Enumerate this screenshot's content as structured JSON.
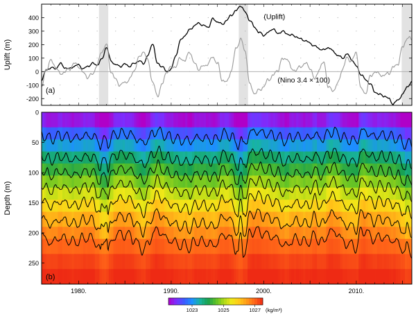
{
  "chart_data": [
    {
      "type": "line",
      "panel_label": "(a)",
      "ylabel": "Uplift  (m)",
      "ylim": [
        -250,
        500
      ],
      "yticks": [
        -200,
        -100,
        0,
        100,
        200,
        300,
        400
      ],
      "xlim": [
        1976,
        2016
      ],
      "grid": "dotted",
      "shaded_periods": [
        [
          1982.2,
          1983.2
        ],
        [
          1997.3,
          1998.3
        ],
        [
          2014.9,
          2016.0
        ]
      ],
      "zero_line": true,
      "series": [
        {
          "name": "(Uplift)",
          "color": "#000000",
          "x": [
            1976.0,
            1976.5,
            1977.0,
            1977.5,
            1978.0,
            1978.5,
            1979.0,
            1979.5,
            1980.0,
            1980.5,
            1981.0,
            1981.5,
            1982.0,
            1982.5,
            1983.0,
            1983.5,
            1984.0,
            1984.5,
            1985.0,
            1985.5,
            1986.0,
            1986.5,
            1987.0,
            1987.5,
            1988.0,
            1988.5,
            1989.0,
            1989.5,
            1990.0,
            1990.5,
            1991.0,
            1991.5,
            1992.0,
            1992.5,
            1993.0,
            1993.5,
            1994.0,
            1994.5,
            1995.0,
            1995.5,
            1996.0,
            1996.5,
            1997.0,
            1997.5,
            1998.0,
            1998.5,
            1999.0,
            1999.5,
            2000.0,
            2000.5,
            2001.0,
            2001.5,
            2002.0,
            2002.5,
            2003.0,
            2003.5,
            2004.0,
            2004.5,
            2005.0,
            2005.5,
            2006.0,
            2006.5,
            2007.0,
            2007.5,
            2008.0,
            2008.5,
            2009.0,
            2009.5,
            2010.0,
            2010.5,
            2011.0,
            2011.5,
            2012.0,
            2012.5,
            2013.0,
            2013.5,
            2014.0,
            2014.5,
            2015.0,
            2015.5,
            2016.0
          ],
          "values": [
            -60,
            10,
            30,
            20,
            60,
            30,
            20,
            40,
            50,
            20,
            40,
            60,
            50,
            90,
            180,
            80,
            50,
            40,
            55,
            40,
            60,
            80,
            60,
            120,
            210,
            60,
            40,
            0,
            20,
            120,
            230,
            270,
            310,
            340,
            360,
            340,
            330,
            390,
            370,
            350,
            380,
            420,
            450,
            490,
            440,
            380,
            330,
            290,
            270,
            290,
            320,
            280,
            300,
            280,
            270,
            260,
            240,
            230,
            210,
            190,
            170,
            160,
            180,
            150,
            120,
            100,
            130,
            90,
            40,
            -20,
            -60,
            -90,
            -150,
            -170,
            -180,
            -200,
            -240,
            -210,
            -170,
            -110,
            -80
          ]
        },
        {
          "name": "(Nino 3.4 × 100)",
          "color": "#999999",
          "x": [
            1976.0,
            1976.5,
            1977.0,
            1977.5,
            1978.0,
            1978.5,
            1979.0,
            1979.5,
            1980.0,
            1980.5,
            1981.0,
            1981.5,
            1982.0,
            1982.5,
            1983.0,
            1983.5,
            1984.0,
            1984.5,
            1985.0,
            1985.5,
            1986.0,
            1986.5,
            1987.0,
            1987.5,
            1988.0,
            1988.5,
            1989.0,
            1989.5,
            1990.0,
            1990.5,
            1991.0,
            1991.5,
            1992.0,
            1992.5,
            1993.0,
            1993.5,
            1994.0,
            1994.5,
            1995.0,
            1995.5,
            1996.0,
            1996.5,
            1997.0,
            1997.5,
            1998.0,
            1998.5,
            1999.0,
            1999.5,
            2000.0,
            2000.5,
            2001.0,
            2001.5,
            2002.0,
            2002.5,
            2003.0,
            2003.5,
            2004.0,
            2004.5,
            2005.0,
            2005.5,
            2006.0,
            2006.5,
            2007.0,
            2007.5,
            2008.0,
            2008.5,
            2009.0,
            2009.5,
            2010.0,
            2010.5,
            2011.0,
            2011.5,
            2012.0,
            2012.5,
            2013.0,
            2013.5,
            2014.0,
            2014.5,
            2015.0,
            2015.5,
            2016.0
          ],
          "values": [
            -120,
            20,
            80,
            40,
            -20,
            0,
            20,
            60,
            40,
            -10,
            -40,
            -20,
            50,
            150,
            200,
            0,
            -60,
            -100,
            -80,
            -60,
            10,
            100,
            150,
            80,
            -80,
            -180,
            -100,
            0,
            30,
            40,
            100,
            80,
            150,
            60,
            20,
            40,
            60,
            110,
            60,
            -60,
            -80,
            10,
            170,
            240,
            150,
            -100,
            -160,
            -140,
            -110,
            -60,
            -30,
            10,
            90,
            100,
            20,
            10,
            40,
            60,
            30,
            -60,
            20,
            70,
            -120,
            -140,
            -90,
            20,
            100,
            80,
            140,
            -130,
            -160,
            -40,
            0,
            -20,
            -30,
            -10,
            30,
            60,
            180,
            250,
            240
          ]
        }
      ],
      "labels": [
        {
          "text": "(Uplift)",
          "x": 2000.0,
          "y": 390
        },
        {
          "text": "(Nino 3.4 × 100)",
          "x": 2001.5,
          "y": -80
        }
      ]
    },
    {
      "type": "heatmap",
      "panel_label": "(b)",
      "ylabel": "Depth  (m)",
      "ylim": [
        285,
        0
      ],
      "yticks": [
        0,
        50,
        100,
        150,
        200,
        250
      ],
      "xlim": [
        1976,
        2016
      ],
      "xticks": [
        1980,
        1990,
        2000,
        2010
      ],
      "xtick_labels": [
        "1980.",
        "1990.",
        "2000.",
        "2010."
      ],
      "colorbar": {
        "unit": "(kg/m³)",
        "tick_values": [
          1023,
          1025,
          1027
        ],
        "tick_labels": [
          "1023",
          "1025",
          "1027"
        ],
        "range": [
          1021.5,
          1027.5
        ],
        "colors": [
          "#b000c8",
          "#7a30ff",
          "#3a5cff",
          "#1c90ff",
          "#18b4a0",
          "#18a050",
          "#5ac028",
          "#a8d818",
          "#f0e818",
          "#ffc818",
          "#ff9818",
          "#ff6418",
          "#ee2a14"
        ]
      },
      "density_bands": [
        {
          "top": 0,
          "bottom": 25,
          "density": 1021.8
        },
        {
          "top": 25,
          "bottom": 45,
          "density": 1022.6
        },
        {
          "top": 45,
          "bottom": 65,
          "density": 1023.2
        },
        {
          "top": 65,
          "bottom": 85,
          "density": 1023.8
        },
        {
          "top": 85,
          "bottom": 105,
          "density": 1024.3
        },
        {
          "top": 105,
          "bottom": 125,
          "density": 1024.8
        },
        {
          "top": 125,
          "bottom": 145,
          "density": 1025.3
        },
        {
          "top": 145,
          "bottom": 165,
          "density": 1025.8
        },
        {
          "top": 165,
          "bottom": 190,
          "density": 1026.3
        },
        {
          "top": 190,
          "bottom": 210,
          "density": 1026.7
        },
        {
          "top": 210,
          "bottom": 235,
          "density": 1027.0
        },
        {
          "top": 235,
          "bottom": 260,
          "density": 1027.3
        },
        {
          "top": 260,
          "bottom": 285,
          "density": 1027.5
        }
      ],
      "isopycnal_mean_depths": [
        40,
        75,
        100,
        125,
        150,
        180,
        210
      ],
      "anomaly_index": [
        -0.3,
        0.1,
        0.2,
        0.1,
        -0.1,
        0.0,
        0.1,
        0.2,
        0.1,
        0.0,
        -0.1,
        0.0,
        0.3,
        0.9,
        1.0,
        0.2,
        -0.2,
        -0.3,
        -0.2,
        -0.2,
        0.0,
        0.4,
        0.6,
        0.3,
        -0.3,
        -0.5,
        -0.3,
        0.0,
        0.1,
        0.2,
        0.4,
        0.3,
        0.5,
        0.2,
        0.1,
        0.2,
        0.2,
        0.4,
        0.2,
        -0.2,
        -0.2,
        0.0,
        0.6,
        1.0,
        0.6,
        -0.3,
        -0.5,
        -0.4,
        -0.3,
        -0.2,
        -0.1,
        0.0,
        0.3,
        0.4,
        0.1,
        0.0,
        0.1,
        0.2,
        0.1,
        -0.2,
        0.1,
        0.2,
        -0.4,
        -0.4,
        -0.3,
        0.1,
        0.3,
        0.3,
        0.5,
        -0.4,
        -0.5,
        -0.1,
        0.0,
        -0.1,
        -0.1,
        0.0,
        0.1,
        0.2,
        0.6,
        0.9,
        0.8
      ]
    }
  ]
}
